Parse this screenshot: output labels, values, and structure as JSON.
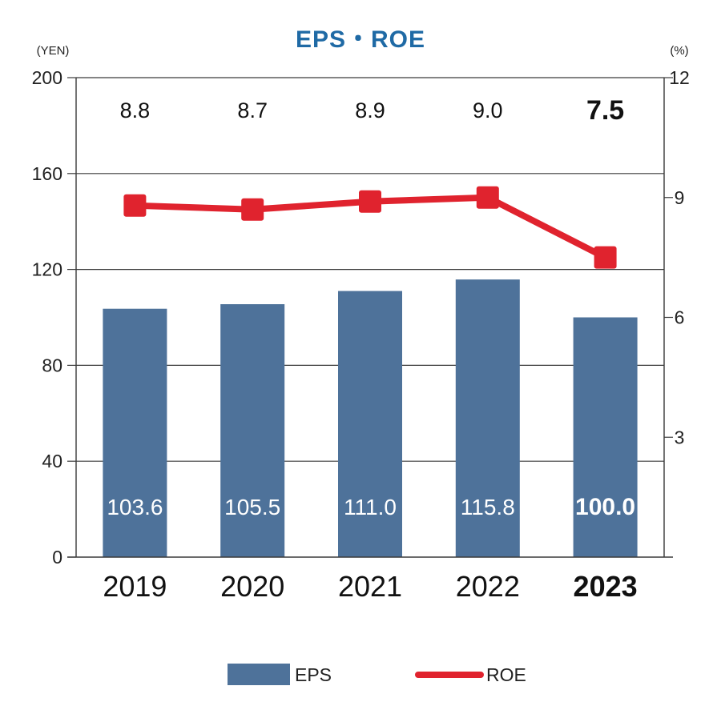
{
  "chart_data": {
    "type": "bar",
    "title": "EPS・ROE",
    "categories": [
      "2019",
      "2020",
      "2021",
      "2022",
      "2023"
    ],
    "highlight_category": "2023",
    "left_axis": {
      "unit": "(YEN)",
      "ylim": [
        0,
        200
      ],
      "ticks": [
        0,
        40,
        80,
        120,
        160,
        200
      ]
    },
    "right_axis": {
      "unit": "(%)",
      "ylim": [
        0,
        12
      ],
      "ticks": [
        3,
        6,
        9,
        12
      ]
    },
    "grid": true,
    "legend_position": "bottom",
    "series": [
      {
        "name": "EPS",
        "type": "bar",
        "axis": "left",
        "color": "#4e729a",
        "values": [
          103.6,
          105.5,
          111.0,
          115.8,
          100.0
        ],
        "labels": [
          "103.6",
          "105.5",
          "111.0",
          "115.8",
          "100.0"
        ]
      },
      {
        "name": "ROE",
        "type": "line",
        "axis": "right",
        "color": "#e0232e",
        "values": [
          8.8,
          8.7,
          8.9,
          9.0,
          7.5
        ],
        "labels": [
          "8.8",
          "8.7",
          "8.9",
          "9.0",
          "7.5"
        ]
      }
    ]
  }
}
